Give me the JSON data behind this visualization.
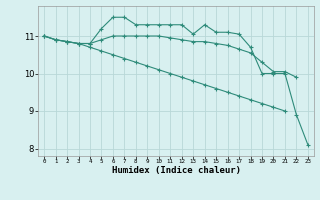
{
  "xlabel": "Humidex (Indice chaleur)",
  "x": [
    0,
    1,
    2,
    3,
    4,
    5,
    6,
    7,
    8,
    9,
    10,
    11,
    12,
    13,
    14,
    15,
    16,
    17,
    18,
    19,
    20,
    21,
    22,
    23
  ],
  "line1": [
    11.0,
    10.9,
    10.85,
    10.8,
    10.8,
    11.2,
    11.5,
    11.5,
    11.3,
    11.3,
    11.3,
    11.3,
    11.3,
    11.05,
    11.3,
    11.1,
    11.1,
    11.05,
    10.7,
    10.0,
    10.0,
    10.0,
    8.9,
    8.1
  ],
  "line2": [
    11.0,
    10.9,
    10.85,
    10.8,
    10.8,
    10.9,
    11.0,
    11.0,
    11.0,
    11.0,
    11.0,
    10.95,
    10.9,
    10.85,
    10.85,
    10.8,
    10.75,
    10.65,
    10.55,
    10.3,
    10.05,
    10.05,
    9.9,
    null
  ],
  "line3": [
    11.0,
    10.9,
    10.85,
    10.8,
    10.7,
    10.6,
    10.5,
    10.4,
    10.3,
    10.2,
    10.1,
    10.0,
    9.9,
    9.8,
    9.7,
    9.6,
    9.5,
    9.4,
    9.3,
    9.2,
    9.1,
    9.0,
    null,
    null
  ],
  "line_color": "#2e8b7a",
  "bg_color": "#d8f0f0",
  "grid_color": "#b8d8d8",
  "ylim": [
    7.8,
    11.8
  ],
  "xlim": [
    -0.5,
    23.5
  ],
  "yticks": [
    8,
    9,
    10,
    11
  ]
}
